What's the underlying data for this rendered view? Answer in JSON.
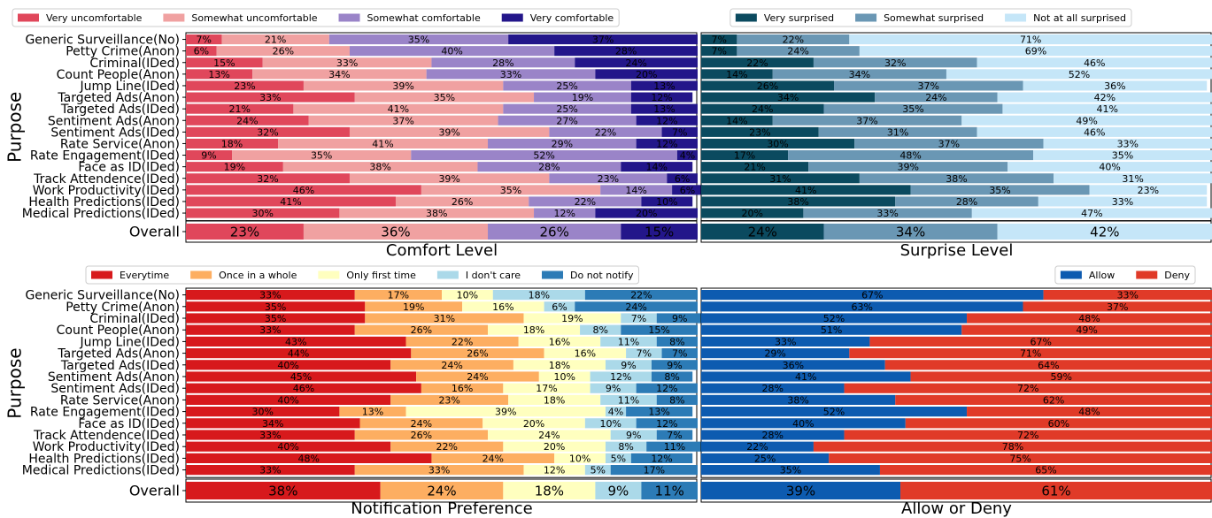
{
  "chart_data": [
    {
      "type": "bar",
      "orientation": "horizontal",
      "stacked": true,
      "xlabel": "Comfort Level",
      "ylabel": "Purpose",
      "legend": "upper left",
      "categories": [
        "Generic Surveillance(No)",
        "Petty Crime(Anon)",
        "Criminal(IDed)",
        "Count People(Anon)",
        "Jump Line(IDed)",
        "Targeted Ads(Anon)",
        "Targeted Ads(IDed)",
        "Sentiment Ads(Anon)",
        "Sentiment Ads(IDed)",
        "Rate Service(Anon)",
        "Rate Engagement(IDed)",
        "Face as ID(IDed)",
        "Track Attendence(IDed)",
        "Work Productivity(IDed)",
        "Health Predictions(IDed)",
        "Medical Predictions(IDed)",
        "Overall"
      ],
      "xlim": [
        0,
        100
      ],
      "series": [
        {
          "name": "Very uncomfortable",
          "color": "#e0475b",
          "values": [
            7,
            6,
            15,
            13,
            23,
            33,
            21,
            24,
            32,
            18,
            9,
            19,
            32,
            46,
            41,
            30,
            23
          ],
          "value_labels": [
            "7%",
            "6%",
            "15%",
            "13%",
            "23%",
            "33%",
            "21%",
            "24%",
            "32%",
            "18%",
            "9%",
            "19%",
            "32%",
            "46%",
            "41%",
            "30%",
            "23%"
          ]
        },
        {
          "name": "Somewhat uncomfortable",
          "color": "#f0a1a1",
          "values": [
            21,
            26,
            33,
            34,
            39,
            35,
            41,
            37,
            39,
            41,
            35,
            38,
            39,
            35,
            26,
            38,
            36
          ],
          "value_labels": [
            "21%",
            "26%",
            "33%",
            "34%",
            "39%",
            "35%",
            "41%",
            "37%",
            "39%",
            "41%",
            "35%",
            "38%",
            "39%",
            "35%",
            "26%",
            "38%",
            "36%"
          ]
        },
        {
          "name": "Somewhat comfortable",
          "color": "#9a84c8",
          "values": [
            35,
            40,
            28,
            33,
            25,
            19,
            25,
            27,
            22,
            29,
            52,
            28,
            23,
            14,
            22,
            12,
            26
          ],
          "value_labels": [
            "35%",
            "40%",
            "28%",
            "33%",
            "25%",
            "19%",
            "25%",
            "27%",
            "22%",
            "29%",
            "52%",
            "28%",
            "23%",
            "14%",
            "22%",
            "12%",
            "26%"
          ]
        },
        {
          "name": "Very comfortable",
          "color": "#23168a",
          "values": [
            37,
            28,
            24,
            20,
            13,
            12,
            13,
            12,
            7,
            12,
            4,
            14,
            6,
            6,
            10,
            20,
            15
          ],
          "value_labels": [
            "37%",
            "28%",
            "24%",
            "20%",
            "13%",
            "12%",
            "13%",
            "12%",
            "7%",
            "12%",
            "4%",
            "14%",
            "6%",
            "6%",
            "10%",
            "20%",
            "15%"
          ]
        }
      ]
    },
    {
      "type": "bar",
      "orientation": "horizontal",
      "stacked": true,
      "xlabel": "Surprise Level",
      "legend": "upper right",
      "xlim": [
        0,
        100
      ],
      "series": [
        {
          "name": "Very surprised",
          "color": "#0b4a5f",
          "values": [
            7,
            7,
            22,
            14,
            26,
            34,
            24,
            14,
            23,
            30,
            17,
            21,
            31,
            41,
            38,
            20,
            24
          ],
          "value_labels": [
            "7%",
            "7%",
            "22%",
            "14%",
            "26%",
            "34%",
            "24%",
            "14%",
            "23%",
            "30%",
            "17%",
            "21%",
            "31%",
            "41%",
            "38%",
            "20%",
            "24%"
          ]
        },
        {
          "name": "Somewhat surprised",
          "color": "#6a97b4",
          "values": [
            22,
            24,
            32,
            34,
            37,
            24,
            35,
            37,
            31,
            37,
            48,
            39,
            38,
            35,
            28,
            33,
            34
          ],
          "value_labels": [
            "22%",
            "24%",
            "32%",
            "34%",
            "37%",
            "24%",
            "35%",
            "37%",
            "31%",
            "37%",
            "48%",
            "39%",
            "38%",
            "35%",
            "28%",
            "33%",
            "34%"
          ]
        },
        {
          "name": "Not at all surprised",
          "color": "#c5e6f8",
          "values": [
            71,
            69,
            46,
            52,
            36,
            42,
            41,
            49,
            46,
            33,
            35,
            40,
            31,
            23,
            33,
            47,
            42
          ],
          "value_labels": [
            "71%",
            "69%",
            "46%",
            "52%",
            "36%",
            "42%",
            "41%",
            "49%",
            "46%",
            "33%",
            "35%",
            "40%",
            "31%",
            "23%",
            "33%",
            "47%",
            "42%"
          ]
        }
      ]
    },
    {
      "type": "bar",
      "orientation": "horizontal",
      "stacked": true,
      "xlabel": "Notification Preference",
      "ylabel": "Purpose",
      "legend": "upper left",
      "categories": [
        "Generic Surveillance(No)",
        "Petty Crime(Anon)",
        "Criminal(IDed)",
        "Count People(Anon)",
        "Jump Line(IDed)",
        "Targeted Ads(Anon)",
        "Targeted Ads(IDed)",
        "Sentiment Ads(Anon)",
        "Sentiment Ads(IDed)",
        "Rate Service(Anon)",
        "Rate Engagement(IDed)",
        "Face as ID(IDed)",
        "Track Attendence(IDed)",
        "Work Productivity(IDed)",
        "Health Predictions(IDed)",
        "Medical Predictions(IDed)",
        "Overall"
      ],
      "xlim": [
        0,
        100
      ],
      "series": [
        {
          "name": "Everytime",
          "color": "#d7191c",
          "values": [
            33,
            35,
            35,
            33,
            43,
            44,
            40,
            45,
            46,
            40,
            30,
            34,
            33,
            40,
            48,
            33,
            38
          ],
          "value_labels": [
            "33%",
            "35%",
            "35%",
            "33%",
            "43%",
            "44%",
            "40%",
            "45%",
            "46%",
            "40%",
            "30%",
            "34%",
            "33%",
            "40%",
            "48%",
            "33%",
            "38%"
          ]
        },
        {
          "name": "Once in a whole",
          "color": "#fdae61",
          "values": [
            17,
            19,
            31,
            26,
            22,
            26,
            24,
            24,
            16,
            23,
            13,
            24,
            26,
            22,
            24,
            33,
            24
          ],
          "value_labels": [
            "17%",
            "19%",
            "31%",
            "26%",
            "22%",
            "26%",
            "24%",
            "24%",
            "16%",
            "23%",
            "13%",
            "24%",
            "26%",
            "22%",
            "24%",
            "33%",
            "24%"
          ]
        },
        {
          "name": "Only first time",
          "color": "#ffffbf",
          "values": [
            10,
            16,
            19,
            18,
            16,
            16,
            18,
            10,
            17,
            18,
            39,
            20,
            24,
            20,
            10,
            12,
            18
          ],
          "value_labels": [
            "10%",
            "16%",
            "19%",
            "18%",
            "16%",
            "16%",
            "18%",
            "10%",
            "17%",
            "18%",
            "39%",
            "20%",
            "24%",
            "20%",
            "10%",
            "12%",
            "18%"
          ]
        },
        {
          "name": "I don't care",
          "color": "#abd9e9",
          "values": [
            18,
            6,
            7,
            8,
            11,
            7,
            9,
            12,
            9,
            11,
            4,
            10,
            9,
            8,
            5,
            5,
            9
          ],
          "value_labels": [
            "18%",
            "6%",
            "7%",
            "8%",
            "11%",
            "7%",
            "9%",
            "12%",
            "9%",
            "11%",
            "4%",
            "10%",
            "9%",
            "8%",
            "5%",
            "5%",
            "9%"
          ]
        },
        {
          "name": "Do not notify",
          "color": "#2c7bb6",
          "values": [
            22,
            24,
            9,
            15,
            8,
            7,
            9,
            8,
            12,
            8,
            13,
            12,
            7,
            11,
            12,
            17,
            11
          ],
          "value_labels": [
            "22%",
            "24%",
            "9%",
            "15%",
            "8%",
            "7%",
            "9%",
            "8%",
            "12%",
            "8%",
            "13%",
            "12%",
            "7%",
            "11%",
            "12%",
            "17%",
            "11%"
          ]
        }
      ]
    },
    {
      "type": "bar",
      "orientation": "horizontal",
      "stacked": true,
      "xlabel": "Allow or Deny",
      "legend": "upper right",
      "xlim": [
        0,
        100
      ],
      "series": [
        {
          "name": "Allow",
          "color": "#0d5bb0",
          "values": [
            67,
            63,
            52,
            51,
            33,
            29,
            36,
            41,
            28,
            38,
            52,
            40,
            28,
            22,
            25,
            35,
            39
          ],
          "value_labels": [
            "67%",
            "63%",
            "52%",
            "51%",
            "33%",
            "29%",
            "36%",
            "41%",
            "28%",
            "38%",
            "52%",
            "40%",
            "28%",
            "22%",
            "25%",
            "35%",
            "39%"
          ]
        },
        {
          "name": "Deny",
          "color": "#e03a28",
          "values": [
            33,
            37,
            48,
            49,
            67,
            71,
            64,
            59,
            72,
            62,
            48,
            60,
            72,
            78,
            75,
            65,
            61
          ],
          "value_labels": [
            "33%",
            "37%",
            "48%",
            "49%",
            "67%",
            "71%",
            "64%",
            "59%",
            "72%",
            "62%",
            "48%",
            "60%",
            "72%",
            "78%",
            "75%",
            "65%",
            "61%"
          ]
        }
      ]
    }
  ]
}
